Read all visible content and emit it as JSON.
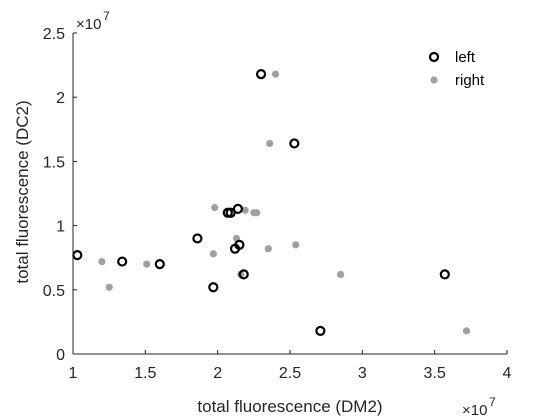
{
  "chart_data": {
    "type": "scatter",
    "xlabel": "total fluorescence (DM2)",
    "ylabel": "total fluorescence (DC2)",
    "x_exponent": {
      "base": "×10",
      "power": "7"
    },
    "y_exponent": {
      "base": "×10",
      "power": "7"
    },
    "xlim": [
      1,
      4
    ],
    "ylim": [
      0,
      2.5
    ],
    "x_ticks": [
      "1",
      "1.5",
      "2",
      "2.5",
      "3",
      "3.5",
      "4"
    ],
    "y_ticks": [
      "0",
      "0.5",
      "1",
      "1.5",
      "2",
      "2.5"
    ],
    "x_tick_values": [
      1,
      1.5,
      2,
      2.5,
      3,
      3.5,
      4
    ],
    "y_tick_values": [
      0,
      0.5,
      1,
      1.5,
      2,
      2.5
    ],
    "grid": false,
    "box": false,
    "legend_position": "top-right",
    "series": [
      {
        "name": "left",
        "marker": "open-circle",
        "color": "#000000",
        "x": [
          1.03,
          1.34,
          1.6,
          1.86,
          1.97,
          2.07,
          2.09,
          2.12,
          2.14,
          2.15,
          2.18,
          2.3,
          2.53,
          2.71,
          3.57
        ],
        "y": [
          0.77,
          0.72,
          0.7,
          0.9,
          0.52,
          1.1,
          1.1,
          0.82,
          1.13,
          0.85,
          0.62,
          2.18,
          1.64,
          0.18,
          0.62
        ]
      },
      {
        "name": "right",
        "marker": "filled-dot",
        "color": "#a0a0a0",
        "x": [
          1.2,
          1.25,
          1.51,
          1.97,
          1.98,
          2.13,
          2.16,
          2.19,
          2.25,
          2.27,
          2.35,
          2.36,
          2.4,
          2.54,
          2.85,
          3.72
        ],
        "y": [
          0.72,
          0.52,
          0.7,
          0.78,
          1.14,
          0.9,
          0.62,
          1.12,
          1.1,
          1.1,
          0.82,
          1.64,
          2.18,
          0.85,
          0.62,
          0.18
        ]
      }
    ]
  }
}
